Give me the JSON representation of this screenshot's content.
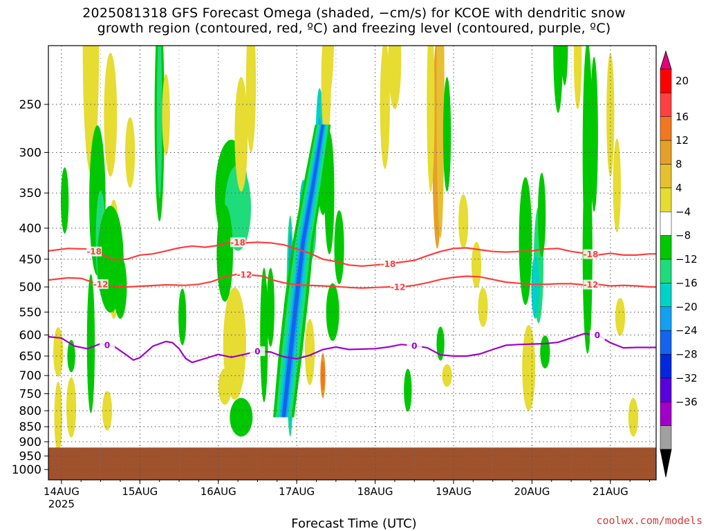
{
  "page": {
    "title_line1": "2025081318 GFS Forecast Omega (shaded, −cm/s) for KCOE with dendritic snow",
    "title_line2": "growth region (contoured, red, ºC) and freezing level (contoured, purple, ºC)",
    "credit": "coolwx.com/models"
  },
  "chart_data": {
    "type": "heatmap",
    "title": "2025081318 GFS Forecast Omega (shaded, −cm/s) for KCOE with dendritic snow growth region (contoured, red, ºC) and freezing level (contoured, purple, ºC)",
    "xlabel": "Forecast Time (UTC)",
    "ylabel": "",
    "x_ticks": [
      "14AUG",
      "15AUG",
      "16AUG",
      "17AUG",
      "18AUG",
      "19AUG",
      "20AUG",
      "21AUG"
    ],
    "x_tick_year": "2025",
    "xlim_hours": [
      -4,
      182
    ],
    "y_ticks": [
      250,
      300,
      350,
      400,
      450,
      500,
      550,
      600,
      650,
      700,
      750,
      800,
      850,
      900,
      950,
      1000
    ],
    "ylim_hPa": [
      200,
      1040
    ],
    "y_scale": "log-pressure",
    "ground_level_hPa": 920,
    "colorbar": {
      "levels": [
        "20",
        "16",
        "12",
        "8",
        "4",
        "−4",
        "−8",
        "−12",
        "−16",
        "−20",
        "−24",
        "−28",
        "−32",
        "−36"
      ],
      "colors": [
        "#ff0000",
        "#ff4040",
        "#f07820",
        "#e6a02a",
        "#e6c030",
        "#e6dc32",
        "#ffffff",
        "#00c800",
        "#1edc7a",
        "#00d2c8",
        "#14a0f0",
        "#1464f0",
        "#0028dc",
        "#5a00dc",
        "#a000c8",
        "#a0a0a0"
      ],
      "top_color": "#e6007a",
      "bottom_color": "#000000"
    },
    "series": [
      {
        "name": "-18",
        "color": "#ff3c3c",
        "label_hours": [
          10,
          54,
          100,
          162
        ],
        "points": [
          [
            -4,
            436
          ],
          [
            2,
            432
          ],
          [
            8,
            433
          ],
          [
            12,
            441
          ],
          [
            16,
            451
          ],
          [
            20,
            450
          ],
          [
            24,
            443
          ],
          [
            28,
            441
          ],
          [
            32,
            436
          ],
          [
            36,
            431
          ],
          [
            40,
            428
          ],
          [
            44,
            430
          ],
          [
            48,
            427
          ],
          [
            52,
            421
          ],
          [
            56,
            423
          ],
          [
            60,
            422
          ],
          [
            64,
            423
          ],
          [
            68,
            426
          ],
          [
            72,
            433
          ],
          [
            76,
            440
          ],
          [
            80,
            450
          ],
          [
            84,
            454
          ],
          [
            88,
            460
          ],
          [
            92,
            462
          ],
          [
            96,
            460
          ],
          [
            100,
            458
          ],
          [
            104,
            455
          ],
          [
            108,
            452
          ],
          [
            112,
            444
          ],
          [
            116,
            437
          ],
          [
            120,
            432
          ],
          [
            124,
            431
          ],
          [
            128,
            434
          ],
          [
            132,
            437
          ],
          [
            136,
            438
          ],
          [
            140,
            437
          ],
          [
            144,
            436
          ],
          [
            148,
            433
          ],
          [
            152,
            432
          ],
          [
            156,
            437
          ],
          [
            160,
            440
          ],
          [
            164,
            443
          ],
          [
            168,
            440
          ],
          [
            172,
            443
          ],
          [
            176,
            443
          ],
          [
            180,
            441
          ],
          [
            182,
            441
          ]
        ]
      },
      {
        "name": "-12",
        "color": "#ff3c3c",
        "label_hours": [
          12,
          56,
          103,
          162
        ],
        "points": [
          [
            -4,
            487
          ],
          [
            2,
            483
          ],
          [
            6,
            484
          ],
          [
            10,
            492
          ],
          [
            14,
            497
          ],
          [
            20,
            500
          ],
          [
            26,
            498
          ],
          [
            32,
            496
          ],
          [
            38,
            497
          ],
          [
            42,
            495
          ],
          [
            46,
            490
          ],
          [
            50,
            481
          ],
          [
            54,
            476
          ],
          [
            58,
            478
          ],
          [
            62,
            480
          ],
          [
            64,
            486
          ],
          [
            68,
            492
          ],
          [
            72,
            496
          ],
          [
            76,
            497
          ],
          [
            80,
            498
          ],
          [
            84,
            499
          ],
          [
            88,
            501
          ],
          [
            92,
            502
          ],
          [
            96,
            501
          ],
          [
            100,
            500
          ],
          [
            104,
            500
          ],
          [
            108,
            497
          ],
          [
            112,
            492
          ],
          [
            116,
            486
          ],
          [
            120,
            482
          ],
          [
            124,
            480
          ],
          [
            128,
            481
          ],
          [
            132,
            486
          ],
          [
            136,
            491
          ],
          [
            140,
            493
          ],
          [
            144,
            495
          ],
          [
            148,
            495
          ],
          [
            152,
            494
          ],
          [
            156,
            494
          ],
          [
            160,
            496
          ],
          [
            164,
            495
          ],
          [
            168,
            498
          ],
          [
            172,
            497
          ],
          [
            176,
            498
          ],
          [
            180,
            500
          ],
          [
            182,
            500
          ]
        ]
      },
      {
        "name": "0",
        "color": "#a000c8",
        "label_hours": [
          14,
          60,
          108,
          164
        ],
        "points": [
          [
            -4,
            604
          ],
          [
            0,
            607
          ],
          [
            4,
            626
          ],
          [
            8,
            632
          ],
          [
            12,
            620
          ],
          [
            16,
            626
          ],
          [
            20,
            648
          ],
          [
            22,
            660
          ],
          [
            24,
            654
          ],
          [
            28,
            626
          ],
          [
            32,
            615
          ],
          [
            34,
            618
          ],
          [
            36,
            632
          ],
          [
            38,
            656
          ],
          [
            40,
            666
          ],
          [
            44,
            656
          ],
          [
            48,
            646
          ],
          [
            52,
            653
          ],
          [
            56,
            646
          ],
          [
            60,
            638
          ],
          [
            64,
            640
          ],
          [
            68,
            652
          ],
          [
            72,
            657
          ],
          [
            76,
            648
          ],
          [
            80,
            634
          ],
          [
            84,
            628
          ],
          [
            88,
            634
          ],
          [
            92,
            633
          ],
          [
            96,
            632
          ],
          [
            100,
            628
          ],
          [
            104,
            622
          ],
          [
            108,
            625
          ],
          [
            112,
            630
          ],
          [
            116,
            647
          ],
          [
            120,
            650
          ],
          [
            124,
            650
          ],
          [
            128,
            645
          ],
          [
            132,
            634
          ],
          [
            136,
            624
          ],
          [
            140,
            622
          ],
          [
            144,
            621
          ],
          [
            148,
            620
          ],
          [
            152,
            617
          ],
          [
            156,
            607
          ],
          [
            160,
            597
          ],
          [
            164,
            600
          ],
          [
            168,
            618
          ],
          [
            172,
            630
          ],
          [
            176,
            629
          ],
          [
            180,
            629
          ],
          [
            182,
            629
          ]
        ]
      }
    ]
  }
}
